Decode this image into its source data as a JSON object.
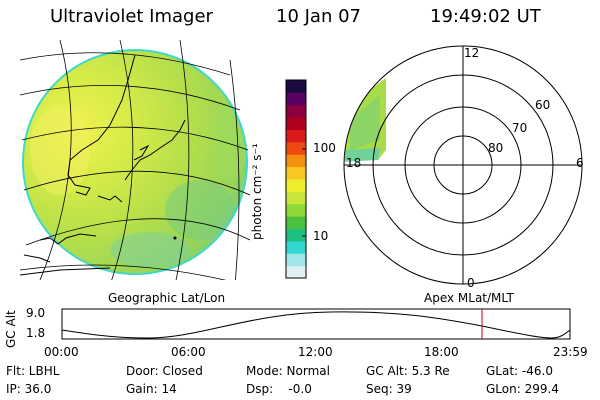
{
  "header": {
    "title": "Ultraviolet Imager",
    "date": "10 Jan 07",
    "time": "19:49:02 UT"
  },
  "colorbar": {
    "unit_label": "photon cm⁻² s⁻¹",
    "ticks": [
      {
        "label": "100",
        "value": 100
      },
      {
        "label": "10",
        "value": 10
      }
    ],
    "colors": [
      "#dfeff2",
      "#9fe6ea",
      "#35d8d0",
      "#1ec080",
      "#4cc040",
      "#8fd83a",
      "#c8e63a",
      "#eeee30",
      "#f8c820",
      "#f49010",
      "#ee4a10",
      "#d81a1a",
      "#b00020",
      "#8a0040",
      "#5a0060",
      "#1a0a40"
    ]
  },
  "left_panel": {
    "label": "Geographic Lat/Lon",
    "colors": {
      "green": "#a8dc4a",
      "yellow": "#e8ee4a",
      "cyan": "#60d0b0",
      "edge": "#30d8c8"
    }
  },
  "right_panel": {
    "label": "Apex  MLat/MLT",
    "hour_labels": [
      {
        "text": "12",
        "pos": "top"
      },
      {
        "text": "18",
        "pos": "left"
      },
      {
        "text": "6",
        "pos": "right"
      },
      {
        "text": "0",
        "pos": "bottom"
      }
    ],
    "lat_labels": [
      "60",
      "70",
      "80"
    ]
  },
  "timeline": {
    "ylabel": "GC Alt",
    "yticks": [
      "9.0",
      "1.8"
    ],
    "xticks": [
      "00:00",
      "06:00",
      "12:00",
      "18:00",
      "23:59"
    ],
    "marker_color": "#cc0000",
    "marker_time": "19:49:02"
  },
  "info": {
    "row1": [
      {
        "key": "flt",
        "text": "Flt: LBHL"
      },
      {
        "key": "door",
        "text": "Door: Closed"
      },
      {
        "key": "mode",
        "text": "Mode: Normal"
      },
      {
        "key": "gcalt",
        "text": "GC Alt: 5.3 Re"
      },
      {
        "key": "glat",
        "text": "GLat: -46.0"
      }
    ],
    "row2": [
      {
        "key": "ip",
        "text": "IP: 36.0"
      },
      {
        "key": "gain",
        "text": "Gain: 14"
      },
      {
        "key": "dsp",
        "text": "Dsp:    -0.0"
      },
      {
        "key": "seq",
        "text": "Seq: 39"
      },
      {
        "key": "glon",
        "text": "GLon: 299.4"
      }
    ]
  }
}
